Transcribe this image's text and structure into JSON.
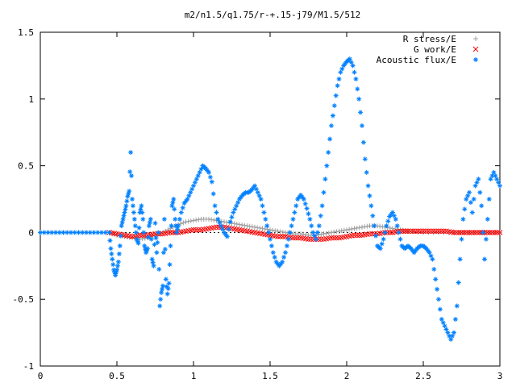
{
  "chart_data": {
    "type": "scatter",
    "title": "m2/n1.5/q1.75/r-+.15-j79/M1.5/512",
    "xlabel": "",
    "ylabel": "",
    "xlim": [
      0,
      3
    ],
    "ylim": [
      -1,
      1.5
    ],
    "x_ticks": [
      "0",
      "0.5",
      "1",
      "1.5",
      "2",
      "2.5",
      "3"
    ],
    "y_ticks": [
      "-1",
      "-0.5",
      "0",
      "0.5",
      "1",
      "1.5"
    ],
    "x_tick_values": [
      0,
      0.5,
      1,
      1.5,
      2,
      2.5,
      3
    ],
    "y_tick_values": [
      -1,
      -0.5,
      0,
      0.5,
      1,
      1.5
    ],
    "grid": false,
    "legend_position": "top-right",
    "series": [
      {
        "name": "R stress/E",
        "marker": "plus",
        "color": "#a0a0a0",
        "points": [
          [
            0.0,
            0.0
          ],
          [
            0.45,
            0.0
          ],
          [
            0.5,
            -0.02
          ],
          [
            0.55,
            -0.03
          ],
          [
            0.6,
            -0.04
          ],
          [
            0.65,
            -0.05
          ],
          [
            0.7,
            -0.04
          ],
          [
            0.75,
            -0.02
          ],
          [
            0.8,
            0.0
          ],
          [
            0.85,
            0.03
          ],
          [
            0.9,
            0.06
          ],
          [
            0.95,
            0.08
          ],
          [
            1.0,
            0.09
          ],
          [
            1.05,
            0.1
          ],
          [
            1.1,
            0.1
          ],
          [
            1.15,
            0.09
          ],
          [
            1.2,
            0.08
          ],
          [
            1.25,
            0.07
          ],
          [
            1.3,
            0.06
          ],
          [
            1.35,
            0.05
          ],
          [
            1.4,
            0.04
          ],
          [
            1.45,
            0.03
          ],
          [
            1.5,
            0.02
          ],
          [
            1.55,
            0.01
          ],
          [
            1.6,
            0.0
          ],
          [
            1.65,
            -0.01
          ],
          [
            1.7,
            -0.01
          ],
          [
            1.75,
            -0.02
          ],
          [
            1.8,
            -0.02
          ],
          [
            1.85,
            -0.01
          ],
          [
            1.9,
            0.0
          ],
          [
            1.95,
            0.01
          ],
          [
            2.0,
            0.02
          ],
          [
            2.05,
            0.03
          ],
          [
            2.1,
            0.04
          ],
          [
            2.15,
            0.05
          ],
          [
            2.2,
            0.05
          ],
          [
            2.25,
            0.04
          ],
          [
            2.3,
            0.03
          ],
          [
            2.35,
            0.02
          ],
          [
            2.4,
            0.01
          ],
          [
            2.5,
            0.0
          ],
          [
            2.6,
            0.0
          ],
          [
            2.7,
            0.0
          ],
          [
            2.8,
            0.0
          ],
          [
            2.9,
            0.0
          ],
          [
            3.0,
            0.0
          ]
        ]
      },
      {
        "name": "G work/E",
        "marker": "cross",
        "color": "#ff0000",
        "points": [
          [
            0.45,
            0.0
          ],
          [
            0.5,
            -0.01
          ],
          [
            0.55,
            -0.02
          ],
          [
            0.6,
            -0.03
          ],
          [
            0.65,
            -0.02
          ],
          [
            0.7,
            -0.02
          ],
          [
            0.75,
            -0.01
          ],
          [
            0.8,
            -0.01
          ],
          [
            0.85,
            0.0
          ],
          [
            0.9,
            0.0
          ],
          [
            0.95,
            0.01
          ],
          [
            1.0,
            0.02
          ],
          [
            1.05,
            0.02
          ],
          [
            1.1,
            0.03
          ],
          [
            1.15,
            0.04
          ],
          [
            1.2,
            0.04
          ],
          [
            1.25,
            0.03
          ],
          [
            1.3,
            0.02
          ],
          [
            1.35,
            0.01
          ],
          [
            1.4,
            0.0
          ],
          [
            1.45,
            -0.01
          ],
          [
            1.5,
            -0.02
          ],
          [
            1.55,
            -0.03
          ],
          [
            1.6,
            -0.03
          ],
          [
            1.65,
            -0.04
          ],
          [
            1.7,
            -0.04
          ],
          [
            1.75,
            -0.05
          ],
          [
            1.8,
            -0.05
          ],
          [
            1.85,
            -0.05
          ],
          [
            1.9,
            -0.04
          ],
          [
            1.95,
            -0.04
          ],
          [
            2.0,
            -0.03
          ],
          [
            2.05,
            -0.02
          ],
          [
            2.1,
            -0.02
          ],
          [
            2.15,
            -0.01
          ],
          [
            2.2,
            -0.01
          ],
          [
            2.25,
            0.0
          ],
          [
            2.3,
            0.0
          ],
          [
            2.35,
            0.01
          ],
          [
            2.4,
            0.01
          ],
          [
            2.45,
            0.01
          ],
          [
            2.5,
            0.01
          ],
          [
            2.55,
            0.01
          ],
          [
            2.6,
            0.01
          ],
          [
            2.65,
            0.01
          ],
          [
            2.7,
            0.0
          ],
          [
            2.75,
            0.0
          ],
          [
            2.8,
            0.0
          ],
          [
            2.85,
            0.0
          ],
          [
            2.9,
            0.0
          ],
          [
            2.95,
            0.0
          ],
          [
            3.0,
            0.0
          ]
        ]
      },
      {
        "name": "Acoustic flux/E",
        "marker": "star",
        "color": "#0080ff",
        "points": [
          [
            0.0,
            0.0
          ],
          [
            0.05,
            0.0
          ],
          [
            0.1,
            0.0
          ],
          [
            0.15,
            0.0
          ],
          [
            0.2,
            0.0
          ],
          [
            0.25,
            0.0
          ],
          [
            0.3,
            0.0
          ],
          [
            0.35,
            0.0
          ],
          [
            0.4,
            0.0
          ],
          [
            0.45,
            0.0
          ],
          [
            0.46,
            -0.12
          ],
          [
            0.47,
            -0.2
          ],
          [
            0.48,
            -0.28
          ],
          [
            0.49,
            -0.32
          ],
          [
            0.5,
            -0.28
          ],
          [
            0.51,
            -0.22
          ],
          [
            0.52,
            -0.1
          ],
          [
            0.53,
            0.05
          ],
          [
            0.54,
            0.1
          ],
          [
            0.55,
            0.15
          ],
          [
            0.56,
            0.2
          ],
          [
            0.57,
            0.27
          ],
          [
            0.58,
            0.31
          ],
          [
            0.59,
            0.6
          ],
          [
            0.6,
            0.25
          ],
          [
            0.61,
            0.15
          ],
          [
            0.62,
            0.05
          ],
          [
            0.63,
            -0.05
          ],
          [
            0.64,
            -0.08
          ],
          [
            0.65,
            0.15
          ],
          [
            0.66,
            0.2
          ],
          [
            0.67,
            0.1
          ],
          [
            0.68,
            -0.1
          ],
          [
            0.69,
            -0.15
          ],
          [
            0.7,
            -0.12
          ],
          [
            0.71,
            0.05
          ],
          [
            0.72,
            0.1
          ],
          [
            0.73,
            -0.2
          ],
          [
            0.74,
            -0.25
          ],
          [
            0.75,
            0.07
          ],
          [
            0.76,
            -0.15
          ],
          [
            0.77,
            0.0
          ],
          [
            0.78,
            -0.55
          ],
          [
            0.79,
            -0.45
          ],
          [
            0.8,
            -0.4
          ],
          [
            0.81,
            0.1
          ],
          [
            0.82,
            -0.35
          ],
          [
            0.83,
            -0.46
          ],
          [
            0.84,
            -0.38
          ],
          [
            0.85,
            -0.1
          ],
          [
            0.86,
            0.2
          ],
          [
            0.87,
            0.25
          ],
          [
            0.88,
            0.1
          ],
          [
            0.89,
            0.0
          ],
          [
            0.9,
            0.05
          ],
          [
            0.92,
            0.15
          ],
          [
            0.94,
            0.22
          ],
          [
            0.96,
            0.25
          ],
          [
            0.98,
            0.3
          ],
          [
            1.0,
            0.35
          ],
          [
            1.02,
            0.4
          ],
          [
            1.04,
            0.45
          ],
          [
            1.06,
            0.5
          ],
          [
            1.08,
            0.48
          ],
          [
            1.1,
            0.45
          ],
          [
            1.12,
            0.38
          ],
          [
            1.14,
            0.2
          ],
          [
            1.16,
            0.1
          ],
          [
            1.18,
            0.05
          ],
          [
            1.2,
            0.0
          ],
          [
            1.22,
            -0.03
          ],
          [
            1.24,
            0.08
          ],
          [
            1.26,
            0.15
          ],
          [
            1.28,
            0.2
          ],
          [
            1.3,
            0.25
          ],
          [
            1.32,
            0.28
          ],
          [
            1.34,
            0.3
          ],
          [
            1.36,
            0.3
          ],
          [
            1.38,
            0.32
          ],
          [
            1.4,
            0.35
          ],
          [
            1.42,
            0.3
          ],
          [
            1.44,
            0.25
          ],
          [
            1.46,
            0.15
          ],
          [
            1.48,
            0.05
          ],
          [
            1.5,
            -0.05
          ],
          [
            1.52,
            -0.15
          ],
          [
            1.54,
            -0.22
          ],
          [
            1.56,
            -0.25
          ],
          [
            1.58,
            -0.22
          ],
          [
            1.6,
            -0.15
          ],
          [
            1.62,
            -0.05
          ],
          [
            1.64,
            0.05
          ],
          [
            1.66,
            0.15
          ],
          [
            1.68,
            0.25
          ],
          [
            1.7,
            0.28
          ],
          [
            1.72,
            0.25
          ],
          [
            1.74,
            0.18
          ],
          [
            1.76,
            0.1
          ],
          [
            1.78,
            0.0
          ],
          [
            1.8,
            -0.05
          ],
          [
            1.82,
            0.05
          ],
          [
            1.84,
            0.2
          ],
          [
            1.86,
            0.4
          ],
          [
            1.88,
            0.6
          ],
          [
            1.9,
            0.8
          ],
          [
            1.92,
            0.95
          ],
          [
            1.94,
            1.1
          ],
          [
            1.96,
            1.2
          ],
          [
            1.98,
            1.25
          ],
          [
            2.0,
            1.28
          ],
          [
            2.02,
            1.3
          ],
          [
            2.04,
            1.25
          ],
          [
            2.06,
            1.15
          ],
          [
            2.08,
            1.0
          ],
          [
            2.1,
            0.8
          ],
          [
            2.12,
            0.55
          ],
          [
            2.14,
            0.35
          ],
          [
            2.16,
            0.2
          ],
          [
            2.18,
            0.05
          ],
          [
            2.2,
            -0.1
          ],
          [
            2.22,
            -0.12
          ],
          [
            2.24,
            -0.05
          ],
          [
            2.26,
            0.05
          ],
          [
            2.28,
            0.12
          ],
          [
            2.3,
            0.15
          ],
          [
            2.32,
            0.1
          ],
          [
            2.34,
            0.0
          ],
          [
            2.36,
            -0.1
          ],
          [
            2.38,
            -0.12
          ],
          [
            2.4,
            -0.1
          ],
          [
            2.42,
            -0.12
          ],
          [
            2.44,
            -0.15
          ],
          [
            2.46,
            -0.12
          ],
          [
            2.48,
            -0.1
          ],
          [
            2.5,
            -0.1
          ],
          [
            2.52,
            -0.12
          ],
          [
            2.54,
            -0.15
          ],
          [
            2.56,
            -0.2
          ],
          [
            2.58,
            -0.35
          ],
          [
            2.6,
            -0.5
          ],
          [
            2.62,
            -0.65
          ],
          [
            2.64,
            -0.7
          ],
          [
            2.66,
            -0.75
          ],
          [
            2.68,
            -0.8
          ],
          [
            2.7,
            -0.75
          ],
          [
            2.72,
            -0.55
          ],
          [
            2.74,
            -0.2
          ],
          [
            2.76,
            0.1
          ],
          [
            2.78,
            0.25
          ],
          [
            2.8,
            0.3
          ],
          [
            2.82,
            0.15
          ],
          [
            2.84,
            0.35
          ],
          [
            2.86,
            0.4
          ],
          [
            2.88,
            0.2
          ],
          [
            2.9,
            -0.2
          ],
          [
            2.92,
            0.1
          ],
          [
            2.94,
            0.4
          ],
          [
            2.96,
            0.45
          ],
          [
            2.98,
            0.4
          ],
          [
            3.0,
            0.35
          ]
        ]
      }
    ]
  },
  "colors": {
    "background": "#ffffff",
    "axis": "#000000"
  }
}
